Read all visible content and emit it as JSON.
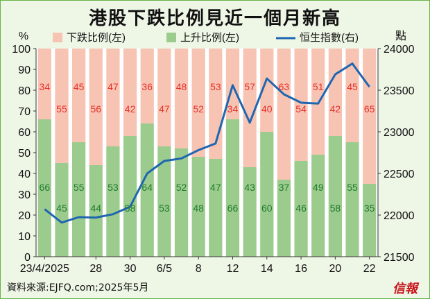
{
  "chart_data": {
    "type": "bar",
    "title": "港股下跌比例見近一個月新高",
    "left_unit": "%",
    "right_unit": "點",
    "legend": {
      "down": "下跌比例(左)",
      "up": "上升比例(左)",
      "index": "恒生指數(右)"
    },
    "colors": {
      "down": "#f7c4b3",
      "up": "#9ccc8d",
      "line": "#1f66b0",
      "down_label": "#e8302a",
      "up_label": "#1f7a2e"
    },
    "x_tick_labels": [
      "23/4/2025",
      "28",
      "30",
      "6/5",
      "8",
      "12",
      "14",
      "16",
      "20",
      "22"
    ],
    "x_tick_indices": [
      0,
      3,
      5,
      7,
      9,
      11,
      13,
      15,
      17,
      19
    ],
    "series": [
      {
        "name": "上升比例(左)",
        "values": [
          66,
          45,
          55,
          44,
          53,
          58,
          64,
          53,
          52,
          48,
          47,
          66,
          43,
          60,
          37,
          46,
          49,
          58,
          55,
          35
        ]
      },
      {
        "name": "下跌比例(左)",
        "values": [
          34,
          55,
          45,
          56,
          47,
          42,
          36,
          47,
          48,
          52,
          53,
          34,
          57,
          40,
          63,
          54,
          51,
          42,
          45,
          65
        ]
      },
      {
        "name": "恒生指數(右)",
        "values": [
          22070,
          21910,
          21975,
          21970,
          22010,
          22100,
          22500,
          22650,
          22680,
          22780,
          22860,
          23560,
          23110,
          23640,
          23450,
          23350,
          23340,
          23690,
          23820,
          23540
        ]
      }
    ],
    "left_axis": {
      "min": 0,
      "max": 100,
      "ticks": [
        0,
        10,
        20,
        30,
        40,
        50,
        60,
        70,
        80,
        90,
        100
      ]
    },
    "right_axis": {
      "min": 21500,
      "max": 24000,
      "ticks": [
        21500,
        22000,
        22500,
        23000,
        23500,
        24000
      ]
    }
  },
  "footer": {
    "source": "資料來源:EJFQ.com;2025年5月",
    "logo": "信報"
  }
}
